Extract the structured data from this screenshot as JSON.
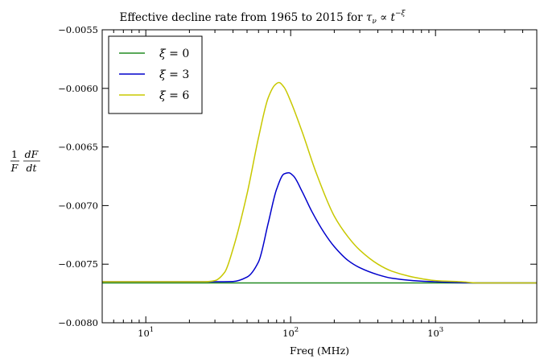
{
  "chart_data": {
    "type": "line",
    "title": "Effective decline rate from 1965 to 2015 for",
    "title_math": {
      "tau": "τ",
      "nu": "ν",
      "prop": "∝",
      "t": "t",
      "xi": "−ξ"
    },
    "xlabel": "Freq (MHz)",
    "ylabel": {
      "one": "1",
      "F": "F",
      "dF": "dF",
      "dt": "dt"
    },
    "x_scale": "log",
    "xlim": [
      5,
      5000
    ],
    "ylim": [
      -0.008,
      -0.0055
    ],
    "x_ticks": [
      {
        "value": 10,
        "base": "10",
        "exp": "1"
      },
      {
        "value": 100,
        "base": "10",
        "exp": "2"
      },
      {
        "value": 1000,
        "base": "10",
        "exp": "3"
      }
    ],
    "y_ticks": [
      {
        "value": -0.0055,
        "label": "−0.0055"
      },
      {
        "value": -0.006,
        "label": "−0.0060"
      },
      {
        "value": -0.0065,
        "label": "−0.0065"
      },
      {
        "value": -0.007,
        "label": "−0.0070"
      },
      {
        "value": -0.0075,
        "label": "−0.0075"
      },
      {
        "value": -0.008,
        "label": "−0.0080"
      }
    ],
    "grid": false,
    "legend_position": "top-left",
    "series": [
      {
        "name": "ξ = 0",
        "legend": {
          "sym": "ξ",
          "rest": " = 0"
        },
        "color": "#228b22",
        "points": [
          [
            5,
            -0.00766
          ],
          [
            5000,
            -0.00766
          ]
        ]
      },
      {
        "name": "ξ = 3",
        "legend": {
          "sym": "ξ",
          "rest": " = 3"
        },
        "color": "#0000cc",
        "points": [
          [
            5,
            -0.00765
          ],
          [
            30,
            -0.00765
          ],
          [
            40,
            -0.007648
          ],
          [
            50,
            -0.00761
          ],
          [
            60,
            -0.00748
          ],
          [
            70,
            -0.00715
          ],
          [
            80,
            -0.00686
          ],
          [
            90,
            -0.00673
          ],
          [
            97,
            -0.00672
          ],
          [
            105,
            -0.00675
          ],
          [
            120,
            -0.00688
          ],
          [
            140,
            -0.00705
          ],
          [
            170,
            -0.00723
          ],
          [
            200,
            -0.00735
          ],
          [
            250,
            -0.00747
          ],
          [
            300,
            -0.00753
          ],
          [
            400,
            -0.00759
          ],
          [
            500,
            -0.00762
          ],
          [
            700,
            -0.00764
          ],
          [
            1000,
            -0.00765
          ],
          [
            2000,
            -0.00766
          ],
          [
            5000,
            -0.00766
          ]
        ]
      },
      {
        "name": "ξ = 6",
        "legend": {
          "sym": "ξ",
          "rest": " = 6"
        },
        "color": "#c8c800",
        "points": [
          [
            5,
            -0.00765
          ],
          [
            25,
            -0.00765
          ],
          [
            30,
            -0.00764
          ],
          [
            35,
            -0.00757
          ],
          [
            40,
            -0.00737
          ],
          [
            50,
            -0.0069
          ],
          [
            60,
            -0.00642
          ],
          [
            70,
            -0.00608
          ],
          [
            78,
            -0.00597
          ],
          [
            83,
            -0.00595
          ],
          [
            90,
            -0.00599
          ],
          [
            100,
            -0.00611
          ],
          [
            120,
            -0.00637
          ],
          [
            150,
            -0.00672
          ],
          [
            200,
            -0.00709
          ],
          [
            250,
            -0.00727
          ],
          [
            300,
            -0.00738
          ],
          [
            400,
            -0.0075
          ],
          [
            500,
            -0.00756
          ],
          [
            700,
            -0.00761
          ],
          [
            1000,
            -0.00764
          ],
          [
            1500,
            -0.00765
          ],
          [
            2000,
            -0.00766
          ],
          [
            5000,
            -0.00766
          ]
        ]
      }
    ]
  }
}
